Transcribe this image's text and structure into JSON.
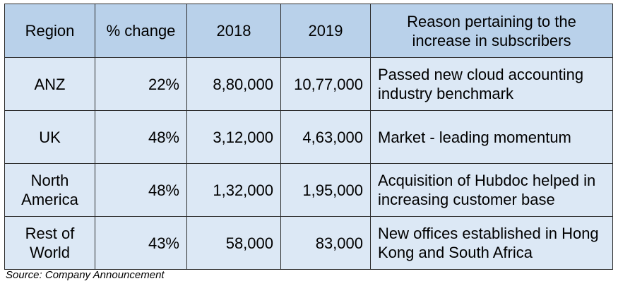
{
  "table": {
    "headers": [
      "Region",
      "% change",
      "2018",
      "2019",
      "Reason pertaining to the increase in subscribers"
    ],
    "rows": [
      [
        "ANZ",
        "22%",
        "8,80,000",
        "10,77,000",
        "Passed new cloud accounting industry benchmark"
      ],
      [
        "UK",
        "48%",
        "3,12,000",
        "4,63,000",
        "Market - leading momentum"
      ],
      [
        "North America",
        "48%",
        "1,32,000",
        "1,95,000",
        "Acquisition of Hubdoc helped in increasing customer base"
      ],
      [
        "Rest of World",
        "43%",
        "58,000",
        "83,000",
        "New offices established in Hong Kong and South Africa"
      ]
    ]
  },
  "source": "Source: Company Announcement"
}
